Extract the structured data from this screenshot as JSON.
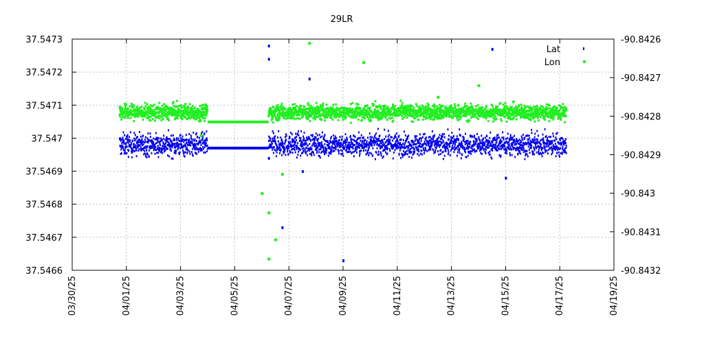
{
  "chart_data": {
    "type": "scatter",
    "title": "29LR",
    "colors": {
      "Lat": "#0000ee",
      "Lon": "#22ee22"
    },
    "grid": "dotted",
    "legend_position": "top-right",
    "x_ticks": [
      "03/30/25",
      "04/01/25",
      "04/03/25",
      "04/05/25",
      "04/07/25",
      "04/09/25",
      "04/11/25",
      "04/13/25",
      "04/15/25",
      "04/17/25",
      "04/19/25"
    ],
    "x_range_days": [
      0,
      20
    ],
    "y_left_ticks": [
      "37.5466",
      "37.5467",
      "37.5468",
      "37.5469",
      "37.547",
      "37.5471",
      "37.5472",
      "37.5473"
    ],
    "y_left_range": [
      37.5466,
      37.5473
    ],
    "y_right_ticks": [
      "-90.8432",
      "-90.8431",
      "-90.843",
      "-90.8429",
      "-90.8428",
      "-90.8427",
      "-90.8426"
    ],
    "y_right_range": [
      -90.8432,
      -90.8426
    ],
    "series": [
      {
        "name": "Lat",
        "axis": "left",
        "segments": [
          {
            "x_start_day": 1.75,
            "x_end_day": 5.0,
            "center": 37.54698,
            "spread": 3e-05
          },
          {
            "x_start_day": 7.25,
            "x_end_day": 18.25,
            "center": 37.54698,
            "spread": 3e-05
          }
        ],
        "flat_line": {
          "x_start_day": 5.0,
          "x_end_day": 7.25,
          "value": 37.54697
        },
        "outliers": [
          [
            7.25,
            37.54728
          ],
          [
            7.25,
            37.54724
          ],
          [
            7.25,
            37.54694
          ],
          [
            7.75,
            37.54673
          ],
          [
            8.75,
            37.54718
          ],
          [
            8.75,
            37.54707
          ],
          [
            10.0,
            37.54663
          ],
          [
            15.5,
            37.54727
          ],
          [
            8.5,
            37.5469
          ],
          [
            16.0,
            37.54688
          ]
        ]
      },
      {
        "name": "Lon",
        "axis": "right",
        "segments": [
          {
            "x_start_day": 1.75,
            "x_end_day": 5.0,
            "center": -90.84279,
            "spread": 1.8e-05
          },
          {
            "x_start_day": 7.25,
            "x_end_day": 18.25,
            "center": -90.84279,
            "spread": 1.8e-05
          }
        ],
        "flat_line": {
          "x_start_day": 5.0,
          "x_end_day": 7.25,
          "value": -90.842815
        },
        "outliers": [
          [
            7.0,
            -90.843
          ],
          [
            7.25,
            -90.84305
          ],
          [
            7.25,
            -90.84317
          ],
          [
            7.5,
            -90.84312
          ],
          [
            7.75,
            -90.84295
          ],
          [
            8.75,
            -90.84261
          ],
          [
            10.75,
            -90.84266
          ],
          [
            13.5,
            -90.84275
          ],
          [
            15.0,
            -90.84272
          ],
          [
            4.75,
            -90.84285
          ]
        ]
      }
    ]
  }
}
